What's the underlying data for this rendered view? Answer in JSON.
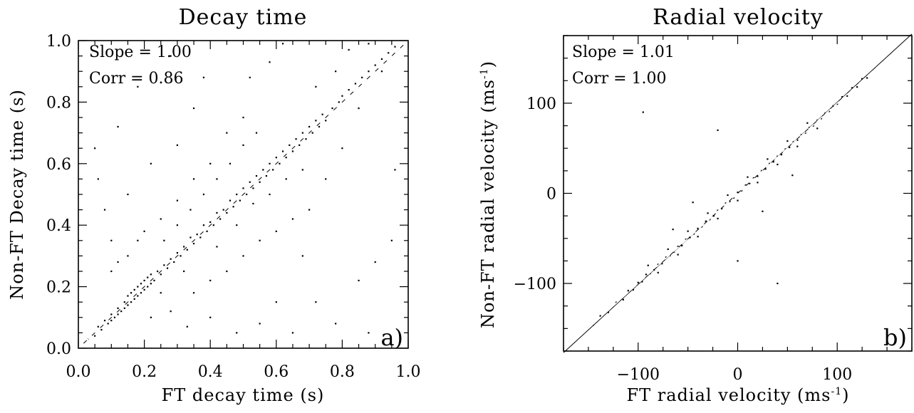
{
  "chart_data": [
    {
      "type": "scatter",
      "panel_label": "a)",
      "title": "Decay time",
      "xlabel": "FT decay time (s)",
      "ylabel": "Non-FT Decay time (s)",
      "xlim": [
        0.0,
        1.0
      ],
      "ylim": [
        0.0,
        1.0
      ],
      "xticks": [
        0.0,
        0.2,
        0.4,
        0.6,
        0.8,
        1.0
      ],
      "yticks": [
        0.0,
        0.2,
        0.4,
        0.6,
        0.8,
        1.0
      ],
      "xtick_labels": [
        "0.0",
        "0.2",
        "0.4",
        "0.6",
        "0.8",
        "1.0"
      ],
      "ytick_labels": [
        "0.0",
        "0.2",
        "0.4",
        "0.6",
        "0.8",
        "1.0"
      ],
      "annotations": [
        "Slope = 1.00",
        "Corr = 0.86"
      ],
      "fit_line": {
        "slope": 1.0,
        "intercept": 0.0
      },
      "identity_line_style": "dashed-white",
      "series": [
        {
          "points": [
            [
              0.03,
              0.03
            ],
            [
              0.05,
              0.04
            ],
            [
              0.06,
              0.07
            ],
            [
              0.07,
              0.06
            ],
            [
              0.08,
              0.09
            ],
            [
              0.09,
              0.08
            ],
            [
              0.1,
              0.11
            ],
            [
              0.1,
              0.09
            ],
            [
              0.11,
              0.1
            ],
            [
              0.12,
              0.13
            ],
            [
              0.12,
              0.11
            ],
            [
              0.13,
              0.12
            ],
            [
              0.14,
              0.15
            ],
            [
              0.14,
              0.13
            ],
            [
              0.15,
              0.14
            ],
            [
              0.15,
              0.17
            ],
            [
              0.16,
              0.15
            ],
            [
              0.16,
              0.18
            ],
            [
              0.17,
              0.16
            ],
            [
              0.17,
              0.19
            ],
            [
              0.18,
              0.17
            ],
            [
              0.18,
              0.2
            ],
            [
              0.19,
              0.18
            ],
            [
              0.19,
              0.21
            ],
            [
              0.2,
              0.19
            ],
            [
              0.2,
              0.22
            ],
            [
              0.21,
              0.2
            ],
            [
              0.21,
              0.23
            ],
            [
              0.22,
              0.21
            ],
            [
              0.22,
              0.24
            ],
            [
              0.23,
              0.22
            ],
            [
              0.24,
              0.25
            ],
            [
              0.25,
              0.24
            ],
            [
              0.26,
              0.27
            ],
            [
              0.27,
              0.26
            ],
            [
              0.28,
              0.29
            ],
            [
              0.29,
              0.28
            ],
            [
              0.3,
              0.31
            ],
            [
              0.31,
              0.3
            ],
            [
              0.32,
              0.33
            ],
            [
              0.33,
              0.32
            ],
            [
              0.34,
              0.36
            ],
            [
              0.35,
              0.34
            ],
            [
              0.36,
              0.37
            ],
            [
              0.37,
              0.36
            ],
            [
              0.38,
              0.4
            ],
            [
              0.39,
              0.38
            ],
            [
              0.4,
              0.41
            ],
            [
              0.41,
              0.4
            ],
            [
              0.42,
              0.44
            ],
            [
              0.43,
              0.42
            ],
            [
              0.44,
              0.45
            ],
            [
              0.45,
              0.44
            ],
            [
              0.46,
              0.48
            ],
            [
              0.47,
              0.46
            ],
            [
              0.48,
              0.5
            ],
            [
              0.49,
              0.48
            ],
            [
              0.5,
              0.52
            ],
            [
              0.51,
              0.5
            ],
            [
              0.52,
              0.54
            ],
            [
              0.53,
              0.52
            ],
            [
              0.54,
              0.56
            ],
            [
              0.55,
              0.54
            ],
            [
              0.56,
              0.58
            ],
            [
              0.57,
              0.56
            ],
            [
              0.58,
              0.6
            ],
            [
              0.59,
              0.58
            ],
            [
              0.6,
              0.62
            ],
            [
              0.61,
              0.6
            ],
            [
              0.62,
              0.64
            ],
            [
              0.63,
              0.62
            ],
            [
              0.64,
              0.66
            ],
            [
              0.65,
              0.64
            ],
            [
              0.66,
              0.68
            ],
            [
              0.67,
              0.66
            ],
            [
              0.68,
              0.7
            ],
            [
              0.69,
              0.68
            ],
            [
              0.7,
              0.72
            ],
            [
              0.71,
              0.7
            ],
            [
              0.72,
              0.74
            ],
            [
              0.73,
              0.72
            ],
            [
              0.74,
              0.76
            ],
            [
              0.75,
              0.74
            ],
            [
              0.77,
              0.78
            ],
            [
              0.79,
              0.8
            ],
            [
              0.8,
              0.82
            ],
            [
              0.82,
              0.84
            ],
            [
              0.84,
              0.86
            ],
            [
              0.86,
              0.88
            ],
            [
              0.88,
              0.9
            ],
            [
              0.9,
              0.92
            ],
            [
              0.92,
              0.94
            ],
            [
              0.94,
              0.96
            ],
            [
              0.96,
              0.98
            ],
            [
              0.15,
              0.3
            ],
            [
              0.2,
              0.38
            ],
            [
              0.25,
              0.42
            ],
            [
              0.12,
              0.28
            ],
            [
              0.3,
              0.48
            ],
            [
              0.35,
              0.55
            ],
            [
              0.18,
              0.35
            ],
            [
              0.22,
              0.1
            ],
            [
              0.28,
              0.12
            ],
            [
              0.35,
              0.18
            ],
            [
              0.4,
              0.22
            ],
            [
              0.45,
              0.25
            ],
            [
              0.5,
              0.3
            ],
            [
              0.55,
              0.35
            ],
            [
              0.6,
              0.38
            ],
            [
              0.65,
              0.42
            ],
            [
              0.7,
              0.45
            ],
            [
              0.1,
              0.25
            ],
            [
              0.08,
              0.45
            ],
            [
              0.06,
              0.55
            ],
            [
              0.05,
              0.65
            ],
            [
              0.12,
              0.72
            ],
            [
              0.18,
              0.85
            ],
            [
              0.28,
              0.95
            ],
            [
              0.35,
              0.78
            ],
            [
              0.45,
              0.7
            ],
            [
              0.52,
              0.88
            ],
            [
              0.58,
              0.93
            ],
            [
              0.62,
              0.99
            ],
            [
              0.72,
              0.85
            ],
            [
              0.78,
              0.9
            ],
            [
              0.82,
              0.97
            ],
            [
              0.88,
              0.99
            ],
            [
              0.92,
              0.9
            ],
            [
              0.85,
              0.78
            ],
            [
              0.8,
              0.65
            ],
            [
              0.75,
              0.55
            ],
            [
              0.68,
              0.3
            ],
            [
              0.72,
              0.15
            ],
            [
              0.78,
              0.08
            ],
            [
              0.85,
              0.22
            ],
            [
              0.9,
              0.28
            ],
            [
              0.95,
              0.35
            ],
            [
              0.6,
              0.15
            ],
            [
              0.55,
              0.08
            ],
            [
              0.48,
              0.05
            ],
            [
              0.4,
              0.1
            ],
            [
              0.33,
              0.07
            ],
            [
              0.65,
              0.05
            ],
            [
              0.88,
              0.05
            ],
            [
              0.96,
              0.58
            ],
            [
              0.4,
              0.6
            ],
            [
              0.3,
              0.66
            ],
            [
              0.22,
              0.6
            ],
            [
              0.15,
              0.5
            ],
            [
              0.38,
              0.88
            ],
            [
              0.5,
              0.75
            ],
            [
              0.1,
              0.35
            ],
            [
              0.25,
              0.18
            ],
            [
              0.32,
              0.25
            ],
            [
              0.42,
              0.33
            ],
            [
              0.48,
              0.4
            ],
            [
              0.53,
              0.47
            ],
            [
              0.58,
              0.5
            ],
            [
              0.63,
              0.55
            ],
            [
              0.68,
              0.58
            ],
            [
              0.26,
              0.35
            ],
            [
              0.3,
              0.4
            ],
            [
              0.34,
              0.45
            ],
            [
              0.38,
              0.5
            ],
            [
              0.42,
              0.55
            ],
            [
              0.46,
              0.6
            ],
            [
              0.5,
              0.66
            ],
            [
              0.54,
              0.7
            ]
          ]
        }
      ]
    },
    {
      "type": "scatter",
      "panel_label": "b)",
      "title": "Radial velocity",
      "xlabel": "FT radial velocity (ms",
      "xlabel_sup": "-1",
      "xlabel_end": ")",
      "ylabel": "Non-FT radial velocity (ms",
      "ylabel_sup": "-1",
      "ylabel_end": ")",
      "xlim": [
        -175,
        175
      ],
      "ylim": [
        -175,
        175
      ],
      "xticks": [
        -100,
        0,
        100
      ],
      "yticks": [
        -100,
        0,
        100
      ],
      "xtick_labels": [
        "−100",
        "0",
        "100"
      ],
      "ytick_labels": [
        "−100",
        "0",
        "100"
      ],
      "annotations": [
        "Slope = 1.01",
        "Corr = 1.00"
      ],
      "fit_line": {
        "slope": 1.01,
        "intercept": 0.0
      },
      "identity_line_style": "dashed-white",
      "series": [
        {
          "points": [
            [
              -145,
              -146
            ],
            [
              -138,
              -136
            ],
            [
              -130,
              -132
            ],
            [
              -122,
              -121
            ],
            [
              -115,
              -118
            ],
            [
              -110,
              -108
            ],
            [
              -105,
              -107
            ],
            [
              -100,
              -99
            ],
            [
              -96,
              -98
            ],
            [
              -92,
              -90
            ],
            [
              -88,
              -89
            ],
            [
              -84,
              -85
            ],
            [
              -80,
              -79
            ],
            [
              -76,
              -78
            ],
            [
              -72,
              -71
            ],
            [
              -68,
              -69
            ],
            [
              -64,
              -65
            ],
            [
              -60,
              -59
            ],
            [
              -56,
              -58
            ],
            [
              -52,
              -51
            ],
            [
              -48,
              -49
            ],
            [
              -44,
              -45
            ],
            [
              -40,
              -39
            ],
            [
              -36,
              -37
            ],
            [
              -32,
              -31
            ],
            [
              -28,
              -29
            ],
            [
              -24,
              -25
            ],
            [
              -20,
              -19
            ],
            [
              -16,
              -17
            ],
            [
              -12,
              -11
            ],
            [
              -8,
              -9
            ],
            [
              -4,
              -5
            ],
            [
              0,
              1
            ],
            [
              4,
              3
            ],
            [
              8,
              9
            ],
            [
              12,
              11
            ],
            [
              16,
              17
            ],
            [
              20,
              19
            ],
            [
              24,
              25
            ],
            [
              28,
              27
            ],
            [
              32,
              33
            ],
            [
              36,
              35
            ],
            [
              40,
              41
            ],
            [
              44,
              43
            ],
            [
              48,
              49
            ],
            [
              52,
              51
            ],
            [
              56,
              57
            ],
            [
              60,
              59
            ],
            [
              64,
              65
            ],
            [
              68,
              67
            ],
            [
              72,
              73
            ],
            [
              76,
              75
            ],
            [
              80,
              81
            ],
            [
              84,
              83
            ],
            [
              88,
              89
            ],
            [
              92,
              91
            ],
            [
              96,
              97
            ],
            [
              100,
              99
            ],
            [
              105,
              107
            ],
            [
              110,
              108
            ],
            [
              115,
              117
            ],
            [
              120,
              118
            ],
            [
              125,
              127
            ],
            [
              130,
              128
            ],
            [
              -90,
              -80
            ],
            [
              -70,
              -62
            ],
            [
              -50,
              -42
            ],
            [
              -30,
              -22
            ],
            [
              -10,
              -2
            ],
            [
              10,
              18
            ],
            [
              30,
              38
            ],
            [
              50,
              58
            ],
            [
              70,
              78
            ],
            [
              -80,
              -88
            ],
            [
              -60,
              -68
            ],
            [
              -40,
              -48
            ],
            [
              -20,
              -28
            ],
            [
              0,
              -8
            ],
            [
              20,
              12
            ],
            [
              40,
              32
            ],
            [
              60,
              52
            ],
            [
              80,
              72
            ],
            [
              -95,
              90
            ],
            [
              -20,
              70
            ],
            [
              40,
              -100
            ],
            [
              0,
              -75
            ],
            [
              25,
              -20
            ],
            [
              -45,
              -10
            ],
            [
              55,
              20
            ],
            [
              -65,
              -40
            ]
          ]
        }
      ]
    }
  ]
}
